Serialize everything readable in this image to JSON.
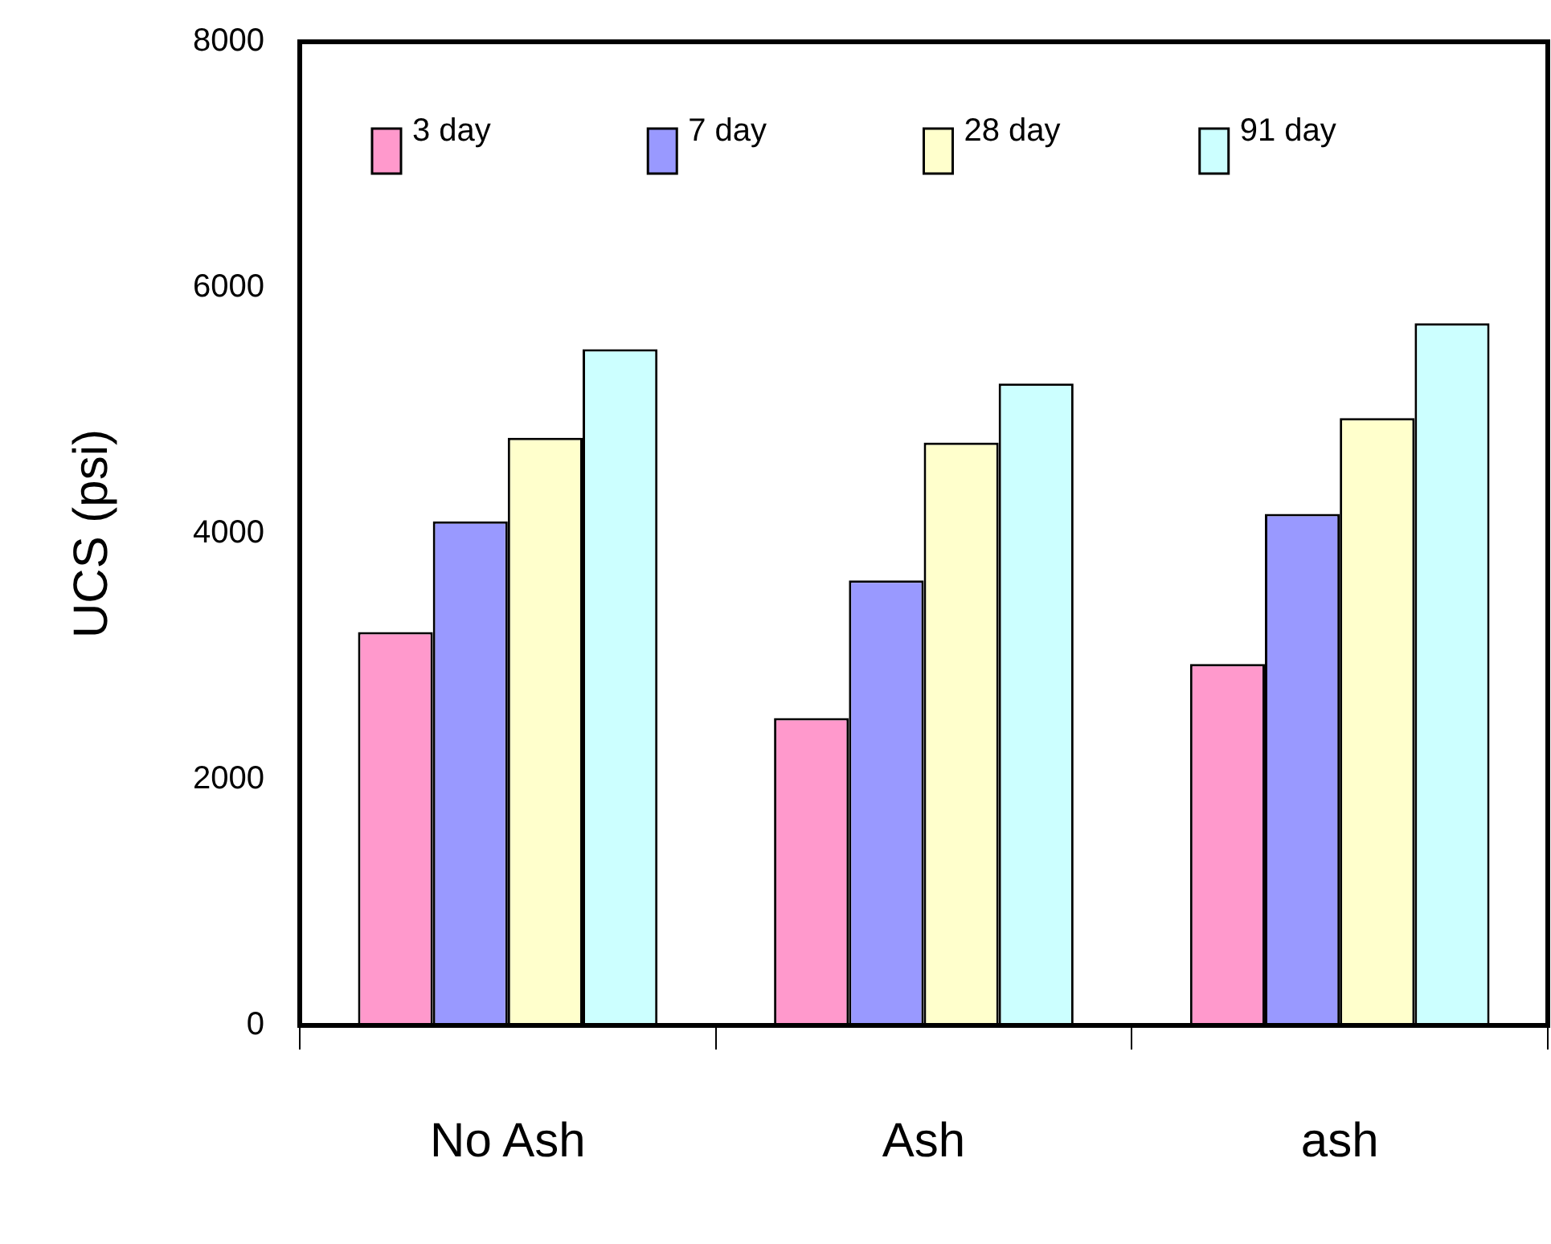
{
  "chart_data": {
    "type": "bar",
    "ylabel": "UCS (psi)",
    "categories": [
      "No Ash",
      "Ash",
      "ash"
    ],
    "series": [
      {
        "name": "3 day",
        "color": "#ff99cc",
        "values": [
          3200,
          2500,
          2940
        ]
      },
      {
        "name": "7 day",
        "color": "#9999ff",
        "values": [
          4100,
          3620,
          4160
        ]
      },
      {
        "name": "28 day",
        "color": "#ffffcc",
        "values": [
          4780,
          4740,
          4940
        ]
      },
      {
        "name": "91 day",
        "color": "#ccffff",
        "values": [
          5500,
          5220,
          5710
        ]
      }
    ],
    "ylim": [
      0,
      8000
    ],
    "yticks": [
      0,
      2000,
      4000,
      6000,
      8000
    ],
    "grid": false,
    "legend": "top"
  }
}
